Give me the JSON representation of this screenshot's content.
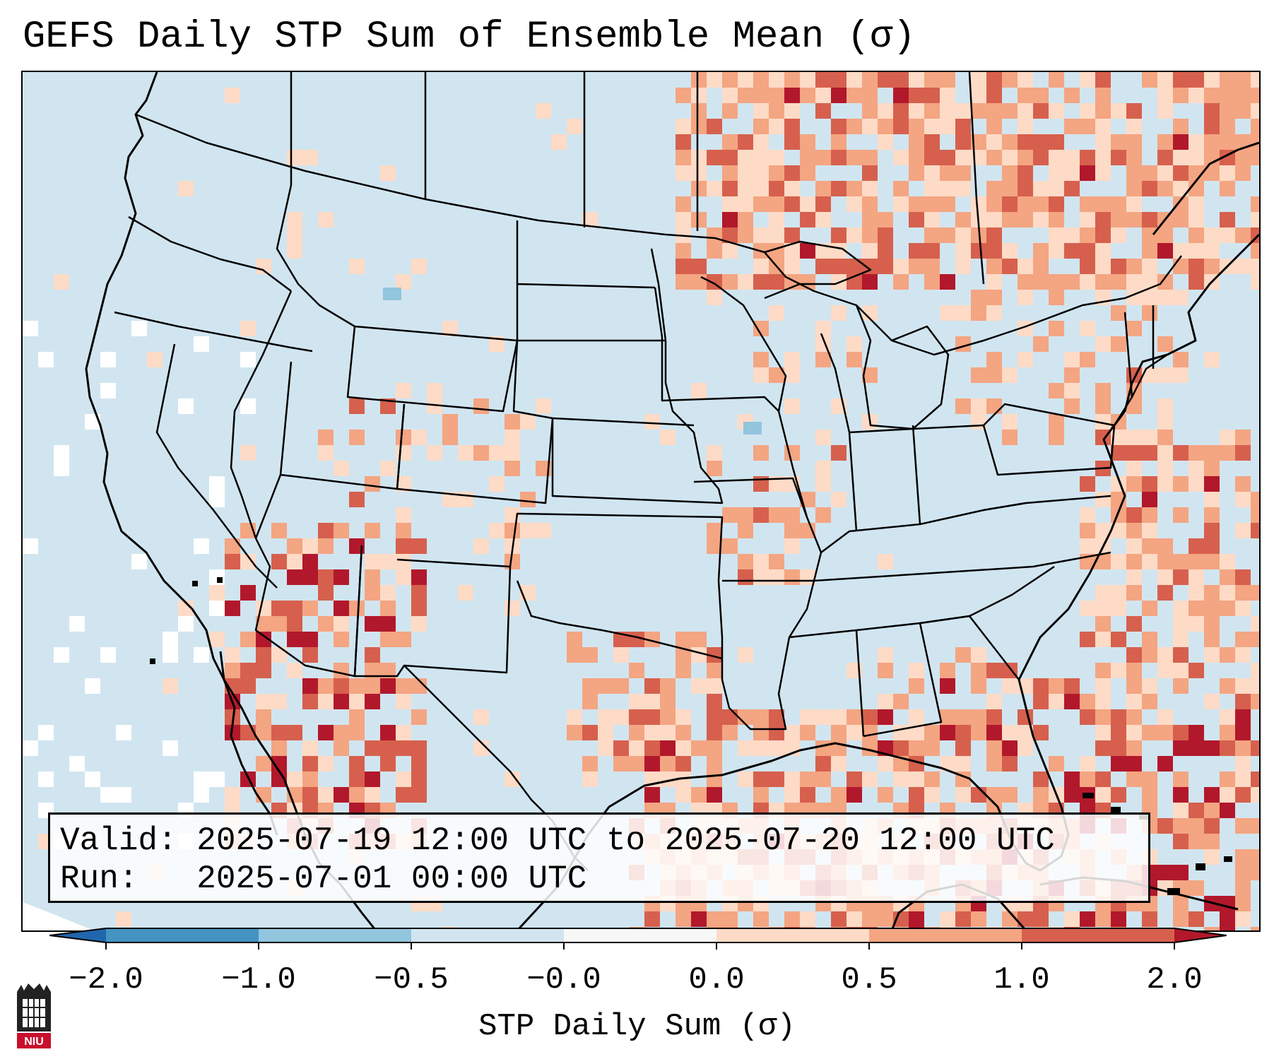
{
  "title": "GEFS Daily STP Sum of Ensemble Mean (σ)",
  "info": {
    "valid_label": "Valid:",
    "valid_value": "2025-07-19 12:00 UTC to 2025-07-20 12:00 UTC",
    "run_label": "Run:",
    "run_value": "2025-07-01 00:00 UTC"
  },
  "colorbar": {
    "label": "STP Daily Sum (σ)",
    "ticks": [
      "−2.0",
      "−1.0",
      "−0.5",
      "−0.0",
      "0.0",
      "0.5",
      "1.0",
      "2.0"
    ],
    "colors": [
      "#2166ac",
      "#4393c3",
      "#92c5de",
      "#d1e5f0",
      "#f7f7f7",
      "#fddbc7",
      "#f4a582",
      "#d6604d",
      "#b2182b"
    ]
  },
  "logo": {
    "text": "NIU"
  },
  "colors": {
    "ocean_land_background": "#d1e5f0",
    "no_data": "#ffffff",
    "boundaries": "#000000"
  }
}
